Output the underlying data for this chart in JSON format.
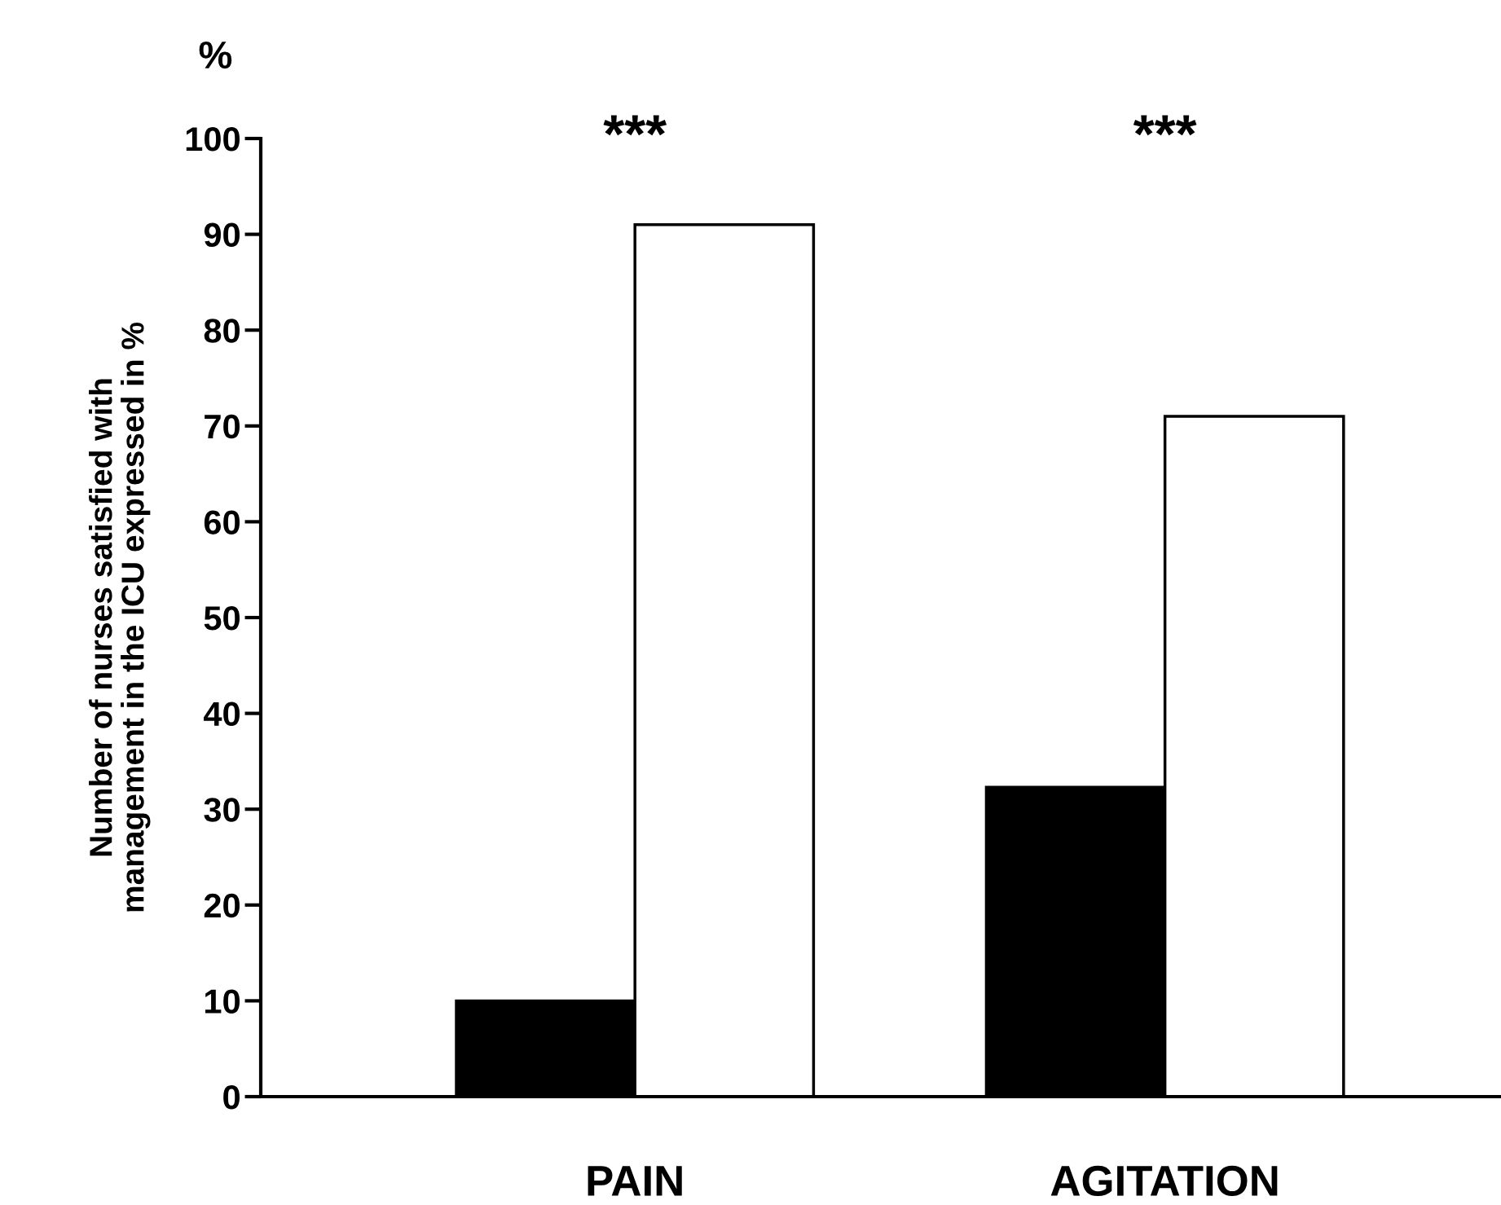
{
  "chart_data": {
    "type": "bar",
    "ylabel": "Number of nurses satisfied with\nmanagement in the ICU expressed in %",
    "categories": [
      "PAIN",
      "AGITATION"
    ],
    "series": [
      {
        "color": "#000000",
        "values": [
          10,
          32.3
        ]
      },
      {
        "color": "#ffffff",
        "values": [
          91,
          71
        ]
      }
    ],
    "ylim": [
      0,
      100
    ],
    "yticks": [
      0,
      10,
      20,
      30,
      40,
      50,
      60,
      70,
      80,
      90,
      100
    ],
    "grid": false,
    "legend": false,
    "annotations": [
      "%",
      "***",
      "***"
    ]
  }
}
